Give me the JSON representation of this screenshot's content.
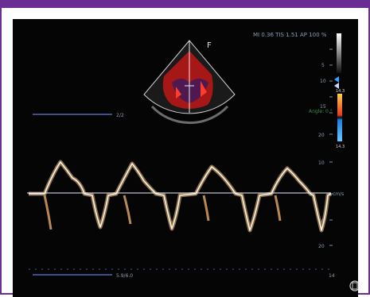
{
  "screen": {
    "sector_label": "F",
    "readout": "MI 0.36  TIS 1.51  AP 100 %"
  },
  "depth_scale": [
    "5",
    "10",
    "15"
  ],
  "color_bar": {
    "top_label": "14.3",
    "bottom_label": "14.3",
    "top_color": "#e53a1e",
    "bottom_color": "#1a7fe0"
  },
  "angle_label": "Angle: 0 °",
  "doppler": {
    "sweep_label_top": "2/2",
    "sweep_label_bottom": "5.9/6.0",
    "unit_label": "cm/s",
    "velocity_ticks": [
      "20",
      "10",
      "10",
      "20"
    ],
    "time_label": "14",
    "trace_color": "#f3c68c"
  },
  "icons": {
    "probe": "probe-icon",
    "marker": "focus-marker-icon"
  }
}
